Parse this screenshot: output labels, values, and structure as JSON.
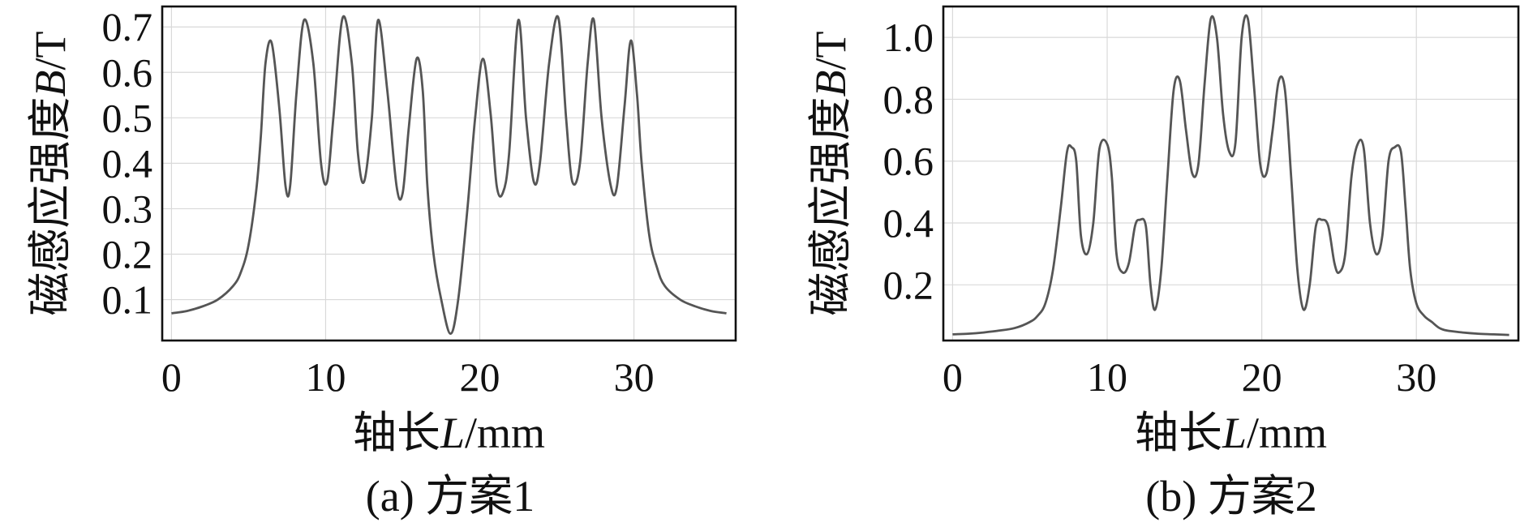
{
  "chart_data": [
    {
      "type": "line",
      "caption": "(a) 方案1",
      "xlabel": "轴长L/mm",
      "xlabel_parts": {
        "prefix": "轴长",
        "var": "L",
        "unit": "/mm"
      },
      "ylabel": "磁感应强度B/T",
      "ylabel_parts": {
        "prefix": "磁感应强度",
        "var": "B",
        "unit": "/T"
      },
      "xlim": [
        -0.6,
        36.6
      ],
      "ylim": [
        0.01,
        0.745
      ],
      "xticks": [
        0,
        10,
        20,
        30
      ],
      "xtick_labels": [
        "0",
        "10",
        "20",
        "30"
      ],
      "yticks": [
        0.1,
        0.2,
        0.3,
        0.4,
        0.5,
        0.6,
        0.7
      ],
      "ytick_labels": [
        "0.1",
        "0.2",
        "0.3",
        "0.4",
        "0.5",
        "0.6",
        "0.7"
      ],
      "grid": true,
      "series": [
        {
          "color": "#555555",
          "x": [
            0,
            1,
            2,
            3,
            4,
            4.5,
            5,
            5.5,
            5.8,
            6.1,
            6.5,
            7,
            7.4,
            7.7,
            8.1,
            8.6,
            9.2,
            9.7,
            10.1,
            10.5,
            11.1,
            11.7,
            12.1,
            12.5,
            13.0,
            13.4,
            14.0,
            14.6,
            15.0,
            15.4,
            15.9,
            16.3,
            16.6,
            17.0,
            17.5,
            18.1,
            18.6,
            19.2,
            19.7,
            20.2,
            20.7,
            21.1,
            21.5,
            21.9,
            22.5,
            23.0,
            23.5,
            23.9,
            24.5,
            25.1,
            25.6,
            26.0,
            26.5,
            27.0,
            27.4,
            27.9,
            28.5,
            28.9,
            29.4,
            29.8,
            30.2,
            30.5,
            31.0,
            31.5,
            32.0,
            33.0,
            34.0,
            35.0,
            36.0
          ],
          "y": [
            0.07,
            0.075,
            0.085,
            0.1,
            0.13,
            0.16,
            0.22,
            0.34,
            0.46,
            0.62,
            0.665,
            0.52,
            0.35,
            0.35,
            0.55,
            0.715,
            0.62,
            0.4,
            0.36,
            0.5,
            0.72,
            0.62,
            0.42,
            0.36,
            0.5,
            0.715,
            0.56,
            0.35,
            0.335,
            0.48,
            0.63,
            0.56,
            0.35,
            0.2,
            0.1,
            0.025,
            0.1,
            0.3,
            0.5,
            0.63,
            0.51,
            0.35,
            0.335,
            0.42,
            0.715,
            0.5,
            0.36,
            0.4,
            0.62,
            0.72,
            0.5,
            0.36,
            0.4,
            0.62,
            0.715,
            0.5,
            0.35,
            0.35,
            0.53,
            0.67,
            0.55,
            0.4,
            0.24,
            0.17,
            0.13,
            0.1,
            0.085,
            0.075,
            0.07
          ]
        }
      ]
    },
    {
      "type": "line",
      "caption": "(b) 方案2",
      "xlabel": "轴长L/mm",
      "xlabel_parts": {
        "prefix": "轴长",
        "var": "L",
        "unit": "/mm"
      },
      "ylabel": "磁感应强度B/T",
      "ylabel_parts": {
        "prefix": "磁感应强度",
        "var": "B",
        "unit": "/T"
      },
      "xlim": [
        -0.6,
        36.6
      ],
      "ylim": [
        0.02,
        1.1
      ],
      "xticks": [
        0,
        10,
        20,
        30
      ],
      "xtick_labels": [
        "0",
        "10",
        "20",
        "30"
      ],
      "yticks": [
        0.2,
        0.4,
        0.6,
        0.8,
        1.0
      ],
      "ytick_labels": [
        "0.2",
        "0.4",
        "0.6",
        "0.8",
        "1.0"
      ],
      "grid": true,
      "series": [
        {
          "color": "#555555",
          "x": [
            0,
            1,
            2,
            3,
            4,
            5,
            5.5,
            6,
            6.5,
            7,
            7.4,
            7.7,
            8.0,
            8.3,
            8.7,
            9.1,
            9.5,
            10.0,
            10.3,
            10.6,
            11.0,
            11.4,
            11.8,
            12.1,
            12.5,
            12.8,
            13.1,
            13.5,
            13.9,
            14.3,
            14.7,
            15.1,
            15.5,
            15.9,
            16.3,
            16.7,
            17.1,
            17.5,
            17.9,
            18.3,
            18.7,
            19.1,
            19.5,
            19.9,
            20.3,
            20.7,
            21.1,
            21.5,
            21.9,
            22.3,
            22.7,
            23.1,
            23.5,
            23.9,
            24.3,
            24.7,
            25.0,
            25.4,
            25.8,
            26.2,
            26.6,
            27.0,
            27.4,
            27.8,
            28.2,
            28.6,
            29.0,
            29.3,
            29.6,
            30.0,
            30.5,
            31.0,
            31.5,
            32.0,
            33.0,
            34.0,
            35.0,
            36.0
          ],
          "y": [
            0.04,
            0.042,
            0.046,
            0.052,
            0.06,
            0.08,
            0.1,
            0.14,
            0.25,
            0.45,
            0.63,
            0.645,
            0.6,
            0.36,
            0.3,
            0.4,
            0.64,
            0.655,
            0.55,
            0.3,
            0.24,
            0.27,
            0.39,
            0.41,
            0.39,
            0.2,
            0.12,
            0.25,
            0.55,
            0.83,
            0.86,
            0.7,
            0.56,
            0.59,
            0.85,
            1.06,
            1.0,
            0.75,
            0.63,
            0.66,
            1.0,
            1.06,
            0.84,
            0.59,
            0.56,
            0.7,
            0.86,
            0.83,
            0.55,
            0.25,
            0.12,
            0.2,
            0.39,
            0.41,
            0.39,
            0.27,
            0.24,
            0.3,
            0.55,
            0.655,
            0.64,
            0.4,
            0.3,
            0.36,
            0.6,
            0.645,
            0.63,
            0.45,
            0.25,
            0.14,
            0.1,
            0.08,
            0.06,
            0.052,
            0.046,
            0.042,
            0.04,
            0.038
          ]
        }
      ]
    }
  ]
}
